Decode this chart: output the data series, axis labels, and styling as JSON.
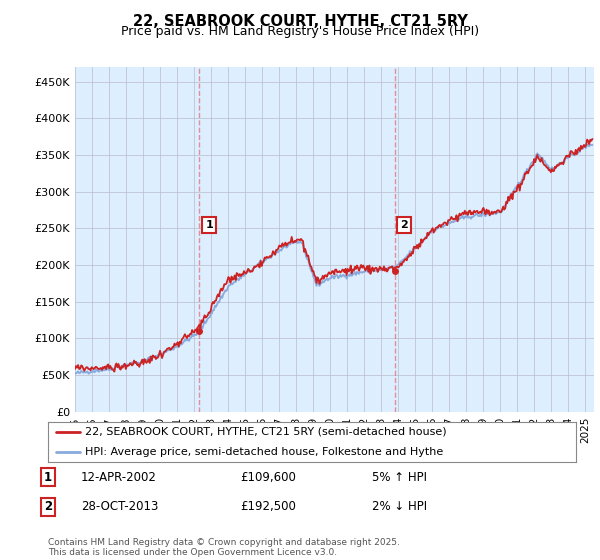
{
  "title": "22, SEABROOK COURT, HYTHE, CT21 5RY",
  "subtitle": "Price paid vs. HM Land Registry's House Price Index (HPI)",
  "ylabel_ticks": [
    "£0",
    "£50K",
    "£100K",
    "£150K",
    "£200K",
    "£250K",
    "£300K",
    "£350K",
    "£400K",
    "£450K"
  ],
  "ytick_values": [
    0,
    50000,
    100000,
    150000,
    200000,
    250000,
    300000,
    350000,
    400000,
    450000
  ],
  "ylim": [
    0,
    470000
  ],
  "xlim_start": 1995.0,
  "xlim_end": 2025.5,
  "xticks": [
    1995,
    1996,
    1997,
    1998,
    1999,
    2000,
    2001,
    2002,
    2003,
    2004,
    2005,
    2006,
    2007,
    2008,
    2009,
    2010,
    2011,
    2012,
    2013,
    2014,
    2015,
    2016,
    2017,
    2018,
    2019,
    2020,
    2021,
    2022,
    2023,
    2024,
    2025
  ],
  "sale1_x": 2002.28,
  "sale1_y": 109600,
  "sale2_x": 2013.83,
  "sale2_y": 192500,
  "sale1_date": "12-APR-2002",
  "sale1_price": "£109,600",
  "sale1_hpi": "5% ↑ HPI",
  "sale2_date": "28-OCT-2013",
  "sale2_price": "£192,500",
  "sale2_hpi": "2% ↓ HPI",
  "vline_color": "#dd2222",
  "vline_alpha": 0.45,
  "hpi_color": "#88aadd",
  "price_color": "#cc2222",
  "bg_color": "#ddeeff",
  "plot_bg": "#ffffff",
  "grid_color": "#bbbbcc",
  "legend_line1": "22, SEABROOK COURT, HYTHE, CT21 5RY (semi-detached house)",
  "legend_line2": "HPI: Average price, semi-detached house, Folkestone and Hythe",
  "footer": "Contains HM Land Registry data © Crown copyright and database right 2025.\nThis data is licensed under the Open Government Licence v3.0.",
  "sale_marker_color": "#cc2222",
  "sale_label_box_color": "#cc2222"
}
